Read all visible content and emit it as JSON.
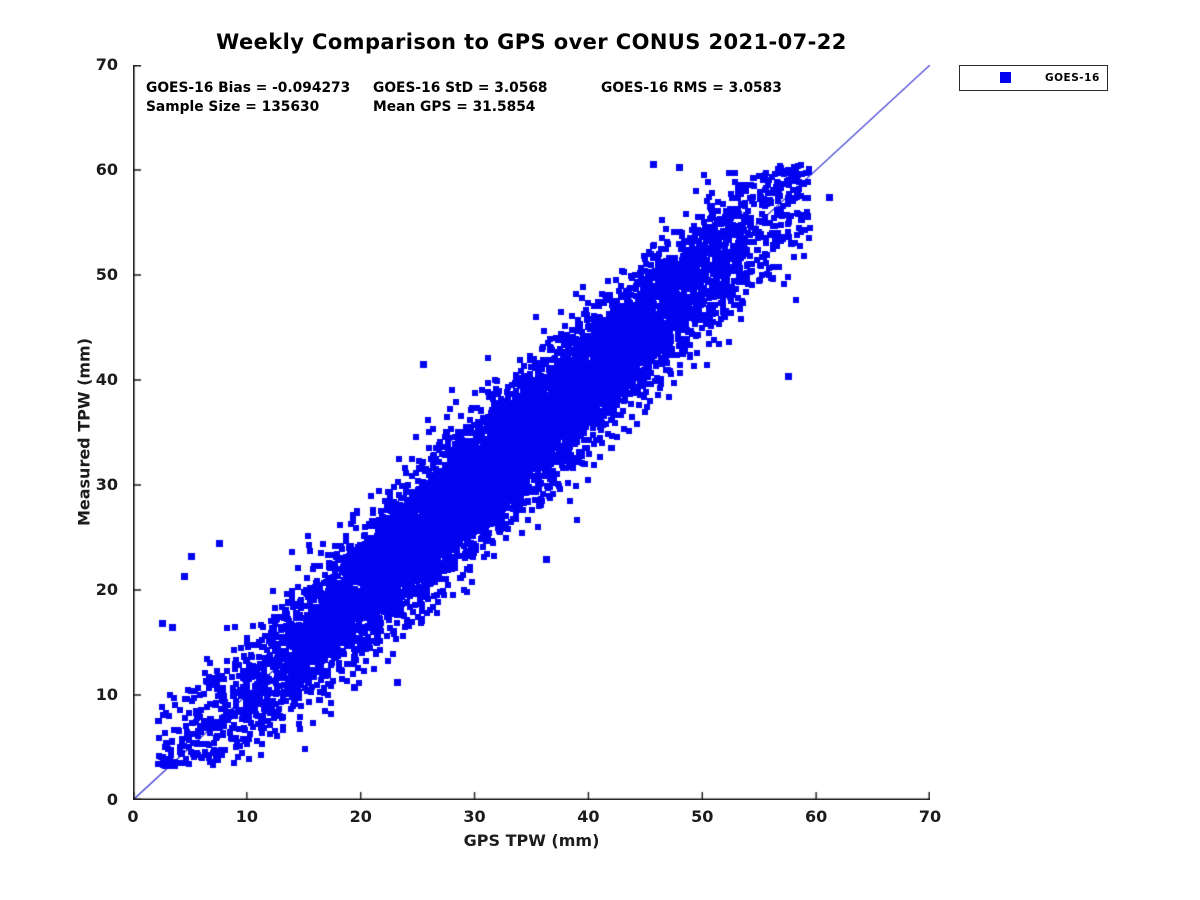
{
  "figure": {
    "background": "#ffffff"
  },
  "chart_data": {
    "type": "scatter",
    "title": "Weekly Comparison to GPS over CONUS 2021-07-22",
    "xlabel": "GPS TPW (mm)",
    "ylabel": "Measured TPW (mm)",
    "xlim": [
      0,
      70
    ],
    "ylim": [
      0,
      70
    ],
    "xticks": [
      "0",
      "10",
      "20",
      "30",
      "40",
      "50",
      "60",
      "70"
    ],
    "yticks": [
      "0",
      "10",
      "20",
      "30",
      "40",
      "50",
      "60",
      "70"
    ],
    "grid": false,
    "axis_color": "#1a1a1a",
    "tick_label_color": "#1c1c1c",
    "legend": {
      "position": "outside-top-right",
      "entries": [
        {
          "label": "GOES-16",
          "marker": "square",
          "color": "#0202f0"
        }
      ]
    },
    "stats": {
      "bias": -0.094273,
      "std": 3.0568,
      "rms": 3.0583,
      "sample_size": 135630,
      "mean_gps": 31.5854
    },
    "stats_text": {
      "bias": "GOES-16 Bias = -0.094273",
      "std": "GOES-16 StD = 3.0568",
      "rms": "GOES-16 RMS = 3.0583",
      "sample_size": "Sample Size = 135630",
      "mean_gps": "Mean GPS = 31.5854"
    },
    "identity_line": {
      "from": [
        0,
        0
      ],
      "to": [
        70,
        70
      ],
      "color": "#3434d2",
      "width": 1.2
    },
    "scatter": {
      "series": "GOES-16",
      "color": "#0202f0",
      "marker": "square",
      "marker_px": 6,
      "sample_size": 135630,
      "rendered_points": 9000,
      "seed": 20210722,
      "x_dist": {
        "mean": 31.5854,
        "std": 12.3,
        "min": 2.2,
        "max": 59.5
      },
      "y_model": {
        "relation": "y = x + bias + N(0, noise_std)",
        "bias": -0.094273,
        "noise_std": 3.0568,
        "min": 3.2,
        "max": 60.5
      },
      "outliers": [
        [
          45.8,
          60.5
        ],
        [
          48.0,
          60.2
        ],
        [
          56.7,
          60.0
        ],
        [
          61.2,
          57.3
        ],
        [
          59.3,
          55.5
        ],
        [
          57.9,
          53.0
        ],
        [
          57.6,
          40.3
        ],
        [
          25.6,
          41.4
        ],
        [
          23.3,
          11.1
        ],
        [
          19.5,
          10.7
        ],
        [
          4.6,
          21.2
        ],
        [
          5.2,
          23.1
        ],
        [
          7.6,
          24.4
        ],
        [
          3.5,
          16.4
        ],
        [
          2.6,
          16.8
        ],
        [
          36.4,
          22.9
        ]
      ]
    }
  }
}
